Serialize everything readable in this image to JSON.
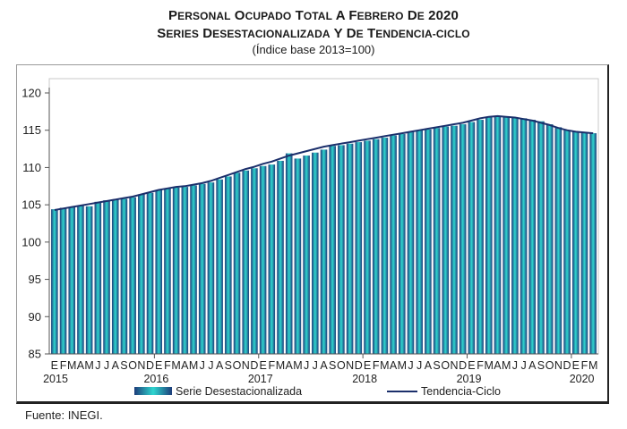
{
  "title": {
    "line1": "Personal ocupado total a febrero de 2020",
    "line2": "Series desestacionalizada y de tendencia-ciclo",
    "line3": "(Índice base 2013=100)"
  },
  "source": "Fuente: INEGI.",
  "colors": {
    "bar_edge": "#1d3d7a",
    "bar_center": "#2fd6cf",
    "trend": "#1b2f6b",
    "axis": "#555555"
  },
  "chart_data": {
    "type": "bar",
    "title": "Personal ocupado total a febrero de 2020",
    "subtitle": "Series desestacionalizada y de tendencia-ciclo (Índice base 2013=100)",
    "xlabel": "",
    "ylabel": "",
    "ylim": [
      85,
      120
    ],
    "yticks": [
      85,
      90,
      95,
      100,
      105,
      110,
      115,
      120
    ],
    "grid": false,
    "legend_position": "bottom",
    "month_labels": [
      "E",
      "F",
      "M",
      "A",
      "M",
      "J",
      "J",
      "A",
      "S",
      "O",
      "N",
      "D"
    ],
    "year_labels": [
      {
        "label": "2015",
        "month_index": 0
      },
      {
        "label": "2016",
        "month_index": 12
      },
      {
        "label": "2017",
        "month_index": 24
      },
      {
        "label": "2018",
        "month_index": 36
      },
      {
        "label": "2019",
        "month_index": 48
      },
      {
        "label": "2020",
        "month_index": 61
      }
    ],
    "series": [
      {
        "name": "Serie Desestacionalizada",
        "kind": "bar",
        "values": [
          104.4,
          104.6,
          104.7,
          104.9,
          104.8,
          105.4,
          105.6,
          105.7,
          105.8,
          106.0,
          106.4,
          106.6,
          107.0,
          107.2,
          107.3,
          107.4,
          107.6,
          107.8,
          108.0,
          108.4,
          108.8,
          109.3,
          109.6,
          109.9,
          110.2,
          110.4,
          110.9,
          111.9,
          111.2,
          111.6,
          112.0,
          112.4,
          112.9,
          113.0,
          113.2,
          113.4,
          113.6,
          113.8,
          114.0,
          114.3,
          114.5,
          114.8,
          115.0,
          115.1,
          115.3,
          115.5,
          115.6,
          115.8,
          116.1,
          116.4,
          116.7,
          116.9,
          116.8,
          116.7,
          116.6,
          116.4,
          116.2,
          115.8,
          115.4,
          115.0,
          114.8,
          114.7,
          114.6
        ]
      },
      {
        "name": "Tendencia-Ciclo",
        "kind": "line",
        "values": [
          104.3,
          104.5,
          104.7,
          104.9,
          105.1,
          105.3,
          105.5,
          105.7,
          105.9,
          106.1,
          106.4,
          106.7,
          107.0,
          107.2,
          107.4,
          107.5,
          107.7,
          107.9,
          108.2,
          108.6,
          109.0,
          109.4,
          109.8,
          110.1,
          110.5,
          110.8,
          111.2,
          111.6,
          111.9,
          112.2,
          112.5,
          112.8,
          113.0,
          113.2,
          113.4,
          113.6,
          113.8,
          114.0,
          114.2,
          114.4,
          114.6,
          114.8,
          115.0,
          115.2,
          115.4,
          115.6,
          115.8,
          116.0,
          116.3,
          116.6,
          116.8,
          116.9,
          116.8,
          116.7,
          116.5,
          116.3,
          116.0,
          115.7,
          115.3,
          115.0,
          114.8,
          114.7,
          114.6
        ]
      }
    ]
  }
}
